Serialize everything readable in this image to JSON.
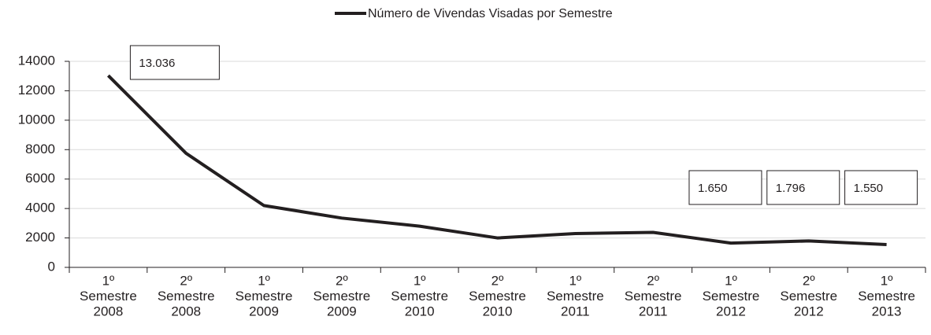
{
  "chart_data": {
    "type": "line",
    "legend_label": "Número de Vivendas Visadas por Semestre",
    "categories": [
      [
        "1º",
        "Semestre",
        "2008"
      ],
      [
        "2º",
        "Semestre",
        "2008"
      ],
      [
        "1º",
        "Semestre",
        "2009"
      ],
      [
        "2º",
        "Semestre",
        "2009"
      ],
      [
        "1º",
        "Semestre",
        "2010"
      ],
      [
        "2º",
        "Semestre",
        "2010"
      ],
      [
        "1º",
        "Semestre",
        "2011"
      ],
      [
        "2º",
        "Semestre",
        "2011"
      ],
      [
        "1º",
        "Semestre",
        "2012"
      ],
      [
        "2º",
        "Semestre",
        "2012"
      ],
      [
        "1º",
        "Semestre",
        "2013"
      ]
    ],
    "series": [
      {
        "name": "Número de Vivendas Visadas por Semestre",
        "color": "#231f20",
        "values": [
          13036,
          7750,
          4200,
          3350,
          2800,
          2000,
          2300,
          2380,
          1650,
          1796,
          1550
        ],
        "value_labels": [
          "13.036",
          null,
          null,
          null,
          null,
          null,
          null,
          null,
          "1.650",
          "1.796",
          "1.550"
        ]
      }
    ],
    "ylim": [
      0,
      14000
    ],
    "yticks": [
      0,
      2000,
      4000,
      6000,
      8000,
      10000,
      12000,
      14000
    ],
    "grid": true
  }
}
